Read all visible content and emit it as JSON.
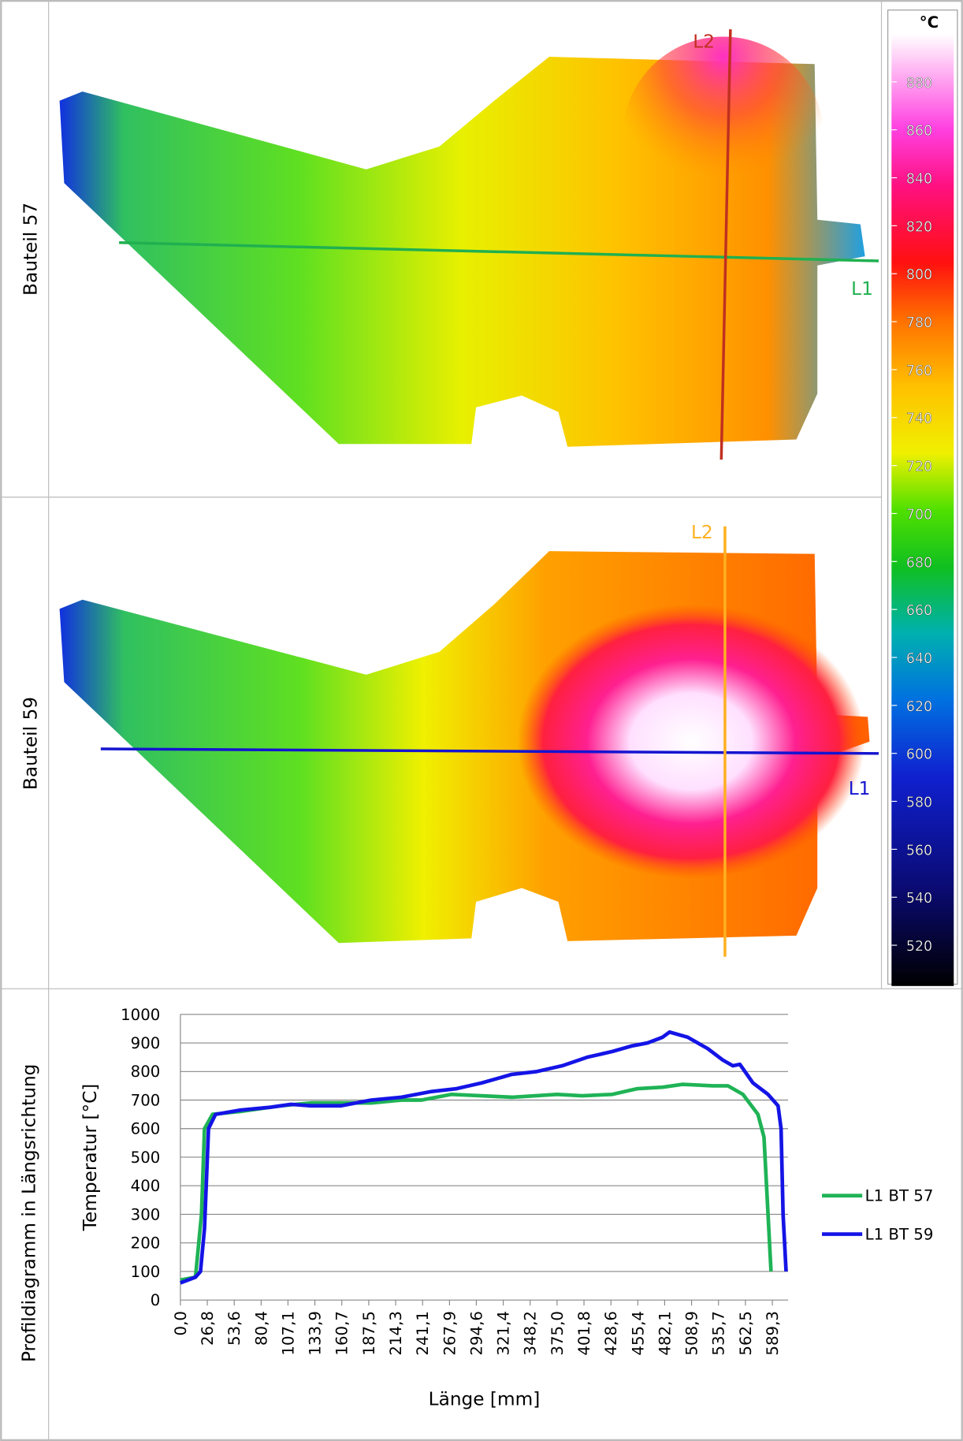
{
  "panels": [
    {
      "label": "Bauteil 57",
      "lines": [
        "L1",
        "L2"
      ]
    },
    {
      "label": "Bauteil 59",
      "lines": [
        "L1",
        "L2"
      ]
    }
  ],
  "colorbar": {
    "unit": "°C",
    "clim": [
      503,
      900
    ],
    "ticks": [
      520,
      540,
      560,
      580,
      600,
      620,
      640,
      660,
      680,
      700,
      720,
      740,
      760,
      780,
      800,
      820,
      840,
      860,
      880
    ]
  },
  "chart_label": "Profildiagramm in Längsrichtung",
  "chart_data": {
    "type": "line",
    "xlabel": "Länge [mm]",
    "ylabel": "Temperatur [°C]",
    "xlim": [
      0,
      605
    ],
    "ylim": [
      0,
      1000
    ],
    "yticks": [
      0,
      100,
      200,
      300,
      400,
      500,
      600,
      700,
      800,
      900,
      1000
    ],
    "xticks": [
      {
        "value": 0,
        "label": "0,0"
      },
      {
        "value": 26.8,
        "label": "26,8"
      },
      {
        "value": 53.6,
        "label": "53,6"
      },
      {
        "value": 80.4,
        "label": "80,4"
      },
      {
        "value": 107.1,
        "label": "107,1"
      },
      {
        "value": 133.9,
        "label": "133,9"
      },
      {
        "value": 160.7,
        "label": "160,7"
      },
      {
        "value": 187.5,
        "label": "187,5"
      },
      {
        "value": 214.3,
        "label": "214,3"
      },
      {
        "value": 241.1,
        "label": "241,1"
      },
      {
        "value": 267.9,
        "label": "267,9"
      },
      {
        "value": 294.6,
        "label": "294,6"
      },
      {
        "value": 321.4,
        "label": "321,4"
      },
      {
        "value": 348.2,
        "label": "348,2"
      },
      {
        "value": 375.0,
        "label": "375,0"
      },
      {
        "value": 401.8,
        "label": "401,8"
      },
      {
        "value": 428.6,
        "label": "428,6"
      },
      {
        "value": 455.4,
        "label": "455,4"
      },
      {
        "value": 482.1,
        "label": "482,1"
      },
      {
        "value": 508.9,
        "label": "508,9"
      },
      {
        "value": 535.7,
        "label": "535,7"
      },
      {
        "value": 562.5,
        "label": "562,5"
      },
      {
        "value": 589.3,
        "label": "589,3"
      }
    ],
    "grid": true,
    "legend": "right",
    "series": [
      {
        "name": "L1 BT 57",
        "color": "#1fb356",
        "x": [
          0,
          15,
          21,
          24,
          32,
          60,
          100,
          130,
          160,
          190,
          220,
          240,
          270,
          300,
          330,
          375,
          400,
          430,
          455,
          480,
          500,
          530,
          545,
          560,
          575,
          581,
          588
        ],
        "values": [
          70,
          80,
          300,
          600,
          650,
          660,
          680,
          690,
          690,
          690,
          700,
          700,
          720,
          715,
          710,
          720,
          715,
          720,
          740,
          745,
          755,
          750,
          750,
          720,
          650,
          570,
          100
        ]
      },
      {
        "name": "L1 BT 59",
        "color": "#1414e6",
        "x": [
          0,
          15,
          20,
          24,
          28,
          35,
          60,
          90,
          110,
          130,
          160,
          190,
          220,
          250,
          275,
          300,
          330,
          355,
          380,
          405,
          430,
          450,
          465,
          480,
          487,
          505,
          525,
          540,
          550,
          557,
          570,
          585,
          595,
          598,
          600,
          603
        ],
        "values": [
          60,
          80,
          100,
          250,
          600,
          650,
          665,
          675,
          685,
          680,
          680,
          700,
          710,
          730,
          740,
          760,
          790,
          800,
          820,
          850,
          870,
          890,
          900,
          920,
          938,
          920,
          880,
          840,
          820,
          825,
          760,
          720,
          680,
          600,
          300,
          100
        ]
      }
    ]
  }
}
